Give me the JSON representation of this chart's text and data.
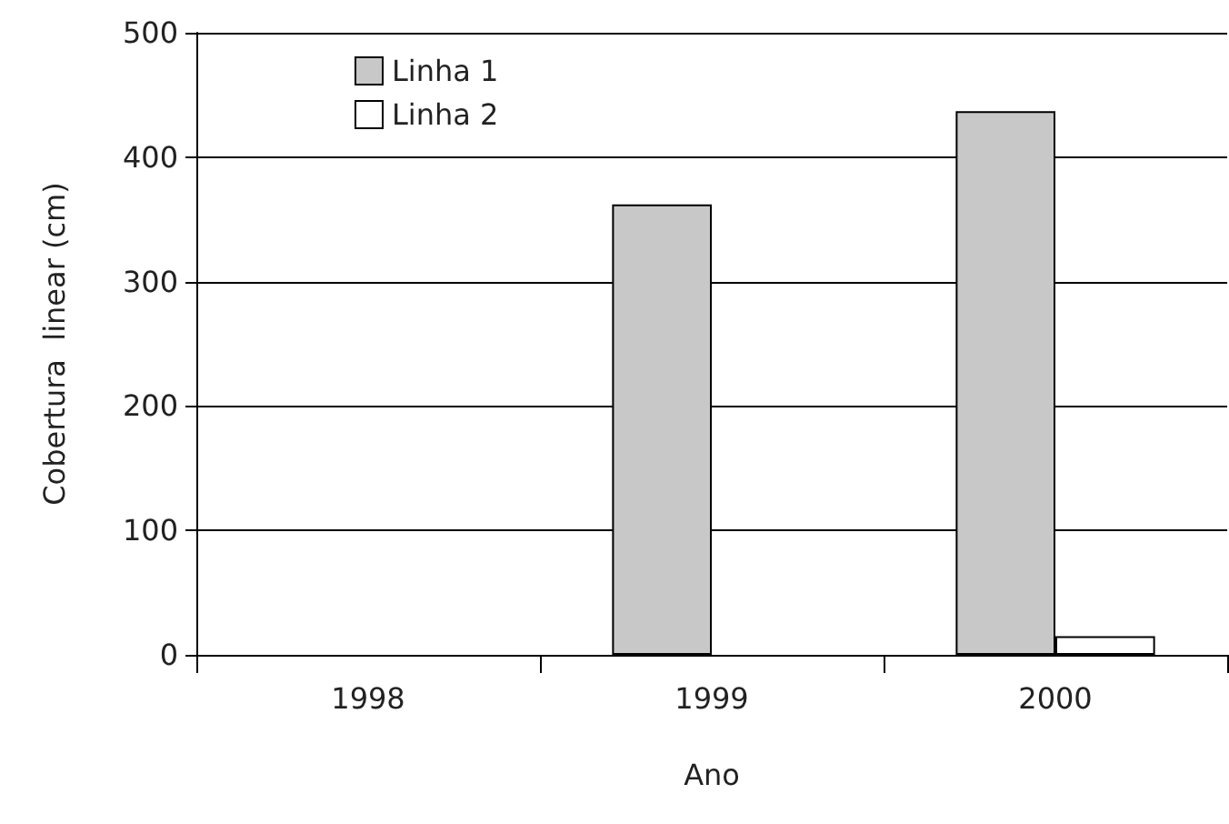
{
  "chart_data": {
    "type": "bar",
    "xlabel": "Ano",
    "ylabel": "Cobertura  linear (cm)",
    "categories": [
      "1998",
      "1999",
      "2000"
    ],
    "series": [
      {
        "name": "Linha 1",
        "color": "#c8c8c8",
        "values": [
          null,
          362,
          437
        ]
      },
      {
        "name": "Linha 2",
        "color": "#ffffff",
        "values": [
          null,
          null,
          15
        ]
      }
    ],
    "ylim": [
      0,
      500
    ],
    "yticks": [
      0,
      100,
      200,
      300,
      400,
      500
    ],
    "grid": "y",
    "legend": "top left"
  }
}
